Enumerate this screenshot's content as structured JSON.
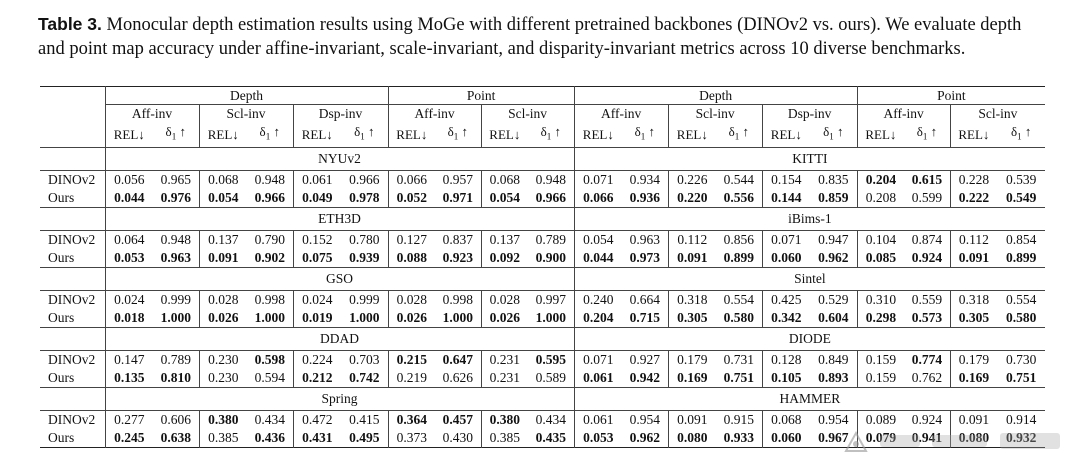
{
  "caption": {
    "label": "Table 3.",
    "text": " Monocular depth estimation results using MoGe with different pretrained backbones (DINOv2 vs. ours). We evaluate depth and point map accuracy under affine-invariant, scale-invariant, and disparity-invariant metrics across 10 diverse benchmarks."
  },
  "header": {
    "groups": [
      "Depth",
      "Point",
      "Depth",
      "Point"
    ],
    "depth_subs": [
      "Aff-inv",
      "Scl-inv",
      "Dsp-inv"
    ],
    "point_subs": [
      "Aff-inv",
      "Scl-inv"
    ],
    "rel": "REL↓",
    "delta": "δ",
    "delta_sub": "1",
    "up": " ↑"
  },
  "blocks": [
    {
      "left": "NYUv2",
      "right": "KITTI",
      "rows": [
        {
          "method": "DINOv2",
          "values": [
            "0.056",
            "0.965",
            "0.068",
            "0.948",
            "0.061",
            "0.966",
            "0.066",
            "0.957",
            "0.068",
            "0.948",
            "0.071",
            "0.934",
            "0.226",
            "0.544",
            "0.154",
            "0.835",
            "0.204",
            "0.615",
            "0.228",
            "0.539"
          ],
          "bold": [
            0,
            0,
            0,
            0,
            0,
            0,
            0,
            0,
            0,
            0,
            0,
            0,
            0,
            0,
            0,
            0,
            1,
            1,
            0,
            0
          ]
        },
        {
          "method": "Ours",
          "values": [
            "0.044",
            "0.976",
            "0.054",
            "0.966",
            "0.049",
            "0.978",
            "0.052",
            "0.971",
            "0.054",
            "0.966",
            "0.066",
            "0.936",
            "0.220",
            "0.556",
            "0.144",
            "0.859",
            "0.208",
            "0.599",
            "0.222",
            "0.549"
          ],
          "bold": [
            1,
            1,
            1,
            1,
            1,
            1,
            1,
            1,
            1,
            1,
            1,
            1,
            1,
            1,
            1,
            1,
            0,
            0,
            1,
            1
          ]
        }
      ]
    },
    {
      "left": "ETH3D",
      "right": "iBims-1",
      "rows": [
        {
          "method": "DINOv2",
          "values": [
            "0.064",
            "0.948",
            "0.137",
            "0.790",
            "0.152",
            "0.780",
            "0.127",
            "0.837",
            "0.137",
            "0.789",
            "0.054",
            "0.963",
            "0.112",
            "0.856",
            "0.071",
            "0.947",
            "0.104",
            "0.874",
            "0.112",
            "0.854"
          ],
          "bold": [
            0,
            0,
            0,
            0,
            0,
            0,
            0,
            0,
            0,
            0,
            0,
            0,
            0,
            0,
            0,
            0,
            0,
            0,
            0,
            0
          ]
        },
        {
          "method": "Ours",
          "values": [
            "0.053",
            "0.963",
            "0.091",
            "0.902",
            "0.075",
            "0.939",
            "0.088",
            "0.923",
            "0.092",
            "0.900",
            "0.044",
            "0.973",
            "0.091",
            "0.899",
            "0.060",
            "0.962",
            "0.085",
            "0.924",
            "0.091",
            "0.899"
          ],
          "bold": [
            1,
            1,
            1,
            1,
            1,
            1,
            1,
            1,
            1,
            1,
            1,
            1,
            1,
            1,
            1,
            1,
            1,
            1,
            1,
            1
          ]
        }
      ]
    },
    {
      "left": "GSO",
      "right": "Sintel",
      "rows": [
        {
          "method": "DINOv2",
          "values": [
            "0.024",
            "0.999",
            "0.028",
            "0.998",
            "0.024",
            "0.999",
            "0.028",
            "0.998",
            "0.028",
            "0.997",
            "0.240",
            "0.664",
            "0.318",
            "0.554",
            "0.425",
            "0.529",
            "0.310",
            "0.559",
            "0.318",
            "0.554"
          ],
          "bold": [
            0,
            0,
            0,
            0,
            0,
            0,
            0,
            0,
            0,
            0,
            0,
            0,
            0,
            0,
            0,
            0,
            0,
            0,
            0,
            0
          ]
        },
        {
          "method": "Ours",
          "values": [
            "0.018",
            "1.000",
            "0.026",
            "1.000",
            "0.019",
            "1.000",
            "0.026",
            "1.000",
            "0.026",
            "1.000",
            "0.204",
            "0.715",
            "0.305",
            "0.580",
            "0.342",
            "0.604",
            "0.298",
            "0.573",
            "0.305",
            "0.580"
          ],
          "bold": [
            1,
            1,
            1,
            1,
            1,
            1,
            1,
            1,
            1,
            1,
            1,
            1,
            1,
            1,
            1,
            1,
            1,
            1,
            1,
            1
          ]
        }
      ]
    },
    {
      "left": "DDAD",
      "right": "DIODE",
      "rows": [
        {
          "method": "DINOv2",
          "values": [
            "0.147",
            "0.789",
            "0.230",
            "0.598",
            "0.224",
            "0.703",
            "0.215",
            "0.647",
            "0.231",
            "0.595",
            "0.071",
            "0.927",
            "0.179",
            "0.731",
            "0.128",
            "0.849",
            "0.159",
            "0.774",
            "0.179",
            "0.730"
          ],
          "bold": [
            0,
            0,
            0,
            1,
            0,
            0,
            1,
            1,
            0,
            1,
            0,
            0,
            0,
            0,
            0,
            0,
            0,
            1,
            0,
            0
          ]
        },
        {
          "method": "Ours",
          "values": [
            "0.135",
            "0.810",
            "0.230",
            "0.594",
            "0.212",
            "0.742",
            "0.219",
            "0.626",
            "0.231",
            "0.589",
            "0.061",
            "0.942",
            "0.169",
            "0.751",
            "0.105",
            "0.893",
            "0.159",
            "0.762",
            "0.169",
            "0.751"
          ],
          "bold": [
            1,
            1,
            0,
            0,
            1,
            1,
            0,
            0,
            0,
            0,
            1,
            1,
            1,
            1,
            1,
            1,
            0,
            0,
            1,
            1
          ]
        }
      ]
    },
    {
      "left": "Spring",
      "right": "HAMMER",
      "rows": [
        {
          "method": "DINOv2",
          "values": [
            "0.277",
            "0.606",
            "0.380",
            "0.434",
            "0.472",
            "0.415",
            "0.364",
            "0.457",
            "0.380",
            "0.434",
            "0.061",
            "0.954",
            "0.091",
            "0.915",
            "0.068",
            "0.954",
            "0.089",
            "0.924",
            "0.091",
            "0.914"
          ],
          "bold": [
            0,
            0,
            1,
            0,
            0,
            0,
            1,
            1,
            1,
            0,
            0,
            0,
            0,
            0,
            0,
            0,
            0,
            0,
            0,
            0
          ]
        },
        {
          "method": "Ours",
          "values": [
            "0.245",
            "0.638",
            "0.385",
            "0.436",
            "0.431",
            "0.495",
            "0.373",
            "0.430",
            "0.385",
            "0.435",
            "0.053",
            "0.962",
            "0.080",
            "0.933",
            "0.060",
            "0.967",
            "0.079",
            "0.941",
            "0.080",
            "0.932"
          ],
          "bold": [
            1,
            1,
            0,
            1,
            1,
            1,
            0,
            0,
            0,
            1,
            1,
            1,
            1,
            1,
            1,
            1,
            1,
            1,
            1,
            1
          ]
        }
      ]
    }
  ]
}
